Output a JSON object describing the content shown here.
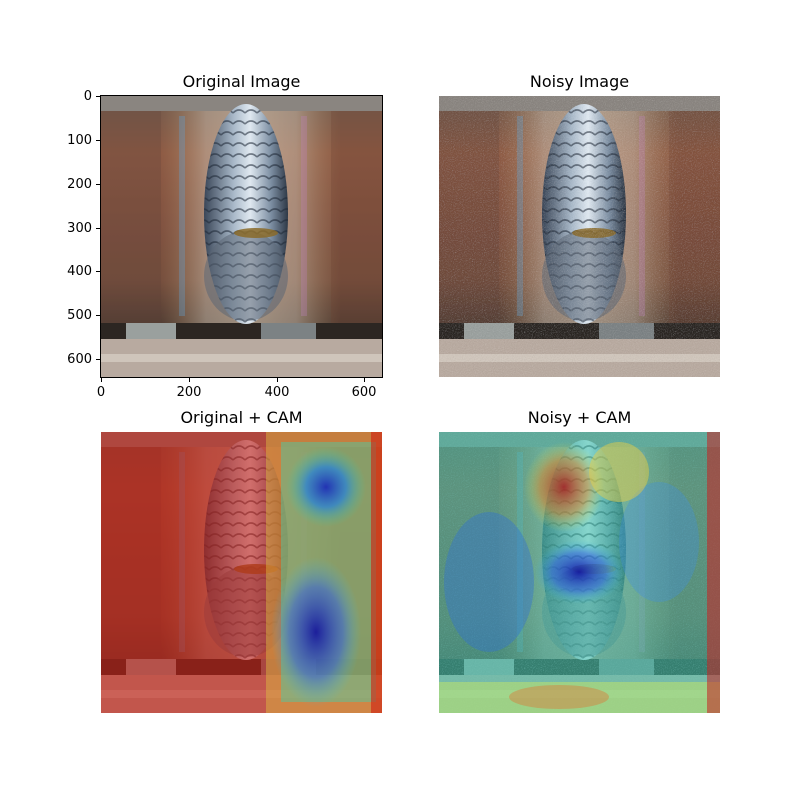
{
  "panels": {
    "original": {
      "title": "Original Image"
    },
    "noisy": {
      "title": "Noisy Image"
    },
    "original_cam": {
      "title": "Original + CAM"
    },
    "noisy_cam": {
      "title": "Noisy + CAM"
    }
  },
  "axes": {
    "y_ticks": [
      "0",
      "100",
      "200",
      "300",
      "400",
      "500",
      "600"
    ],
    "x_ticks": [
      "0",
      "200",
      "400",
      "600"
    ]
  },
  "icons": {
    "weld": "weld-pipe-photo"
  }
}
